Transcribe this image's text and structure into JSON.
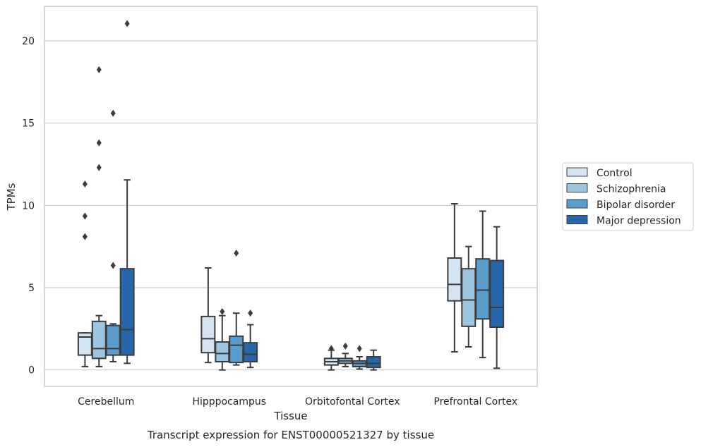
{
  "chart_data": {
    "type": "box",
    "title": "",
    "caption": "Transcript expression for ENST00000521327 by tissue",
    "xlabel": "Tissue",
    "ylabel": "TPMs",
    "ylim": [
      -1,
      22.1
    ],
    "yticks": [
      0,
      5,
      10,
      15,
      20
    ],
    "grid": "horizontal",
    "legend_placement": "right",
    "categories": [
      "Cerebellum",
      "Hipppocampus",
      "Orbitofontal Cortex",
      "Prefrontal Cortex"
    ],
    "series": [
      {
        "name": "Control",
        "color": "#d5e4f1",
        "boxes": [
          {
            "whisker_low": 0.2,
            "q1": 0.9,
            "median": 2.0,
            "q3": 2.25,
            "whisker_high": 2.25,
            "outliers": [
              8.1,
              9.35,
              11.3
            ]
          },
          {
            "whisker_low": 0.45,
            "q1": 1.05,
            "median": 1.9,
            "q3": 3.25,
            "whisker_high": 6.2,
            "outliers": []
          },
          {
            "whisker_low": 0.0,
            "q1": 0.3,
            "median": 0.5,
            "q3": 0.7,
            "whisker_high": 1.2,
            "outliers": [
              1.3
            ]
          },
          {
            "whisker_low": 1.1,
            "q1": 4.2,
            "median": 5.2,
            "q3": 6.8,
            "whisker_high": 10.1,
            "outliers": []
          }
        ]
      },
      {
        "name": "Schizophrenia",
        "color": "#9dc5df",
        "boxes": [
          {
            "whisker_low": 0.2,
            "q1": 0.7,
            "median": 1.3,
            "q3": 2.95,
            "whisker_high": 3.3,
            "outliers": [
              12.3,
              13.8,
              18.25
            ]
          },
          {
            "whisker_low": 0.0,
            "q1": 0.5,
            "median": 1.0,
            "q3": 1.7,
            "whisker_high": 3.3,
            "outliers": [
              3.55
            ]
          },
          {
            "whisker_low": 0.2,
            "q1": 0.4,
            "median": 0.55,
            "q3": 0.7,
            "whisker_high": 1.0,
            "outliers": [
              1.45
            ]
          },
          {
            "whisker_low": 1.4,
            "q1": 2.65,
            "median": 4.25,
            "q3": 6.15,
            "whisker_high": 7.5,
            "outliers": []
          }
        ]
      },
      {
        "name": "Bipolar disorder",
        "color": "#5a9ccc",
        "boxes": [
          {
            "whisker_low": 0.5,
            "q1": 0.9,
            "median": 1.3,
            "q3": 2.7,
            "whisker_high": 2.8,
            "outliers": [
              6.35,
              15.6
            ]
          },
          {
            "whisker_low": 0.3,
            "q1": 0.45,
            "median": 1.5,
            "q3": 2.05,
            "whisker_high": 3.45,
            "outliers": [
              7.1
            ]
          },
          {
            "whisker_low": 0.05,
            "q1": 0.2,
            "median": 0.4,
            "q3": 0.55,
            "whisker_high": 0.8,
            "outliers": [
              1.3
            ]
          },
          {
            "whisker_low": 0.75,
            "q1": 3.1,
            "median": 4.85,
            "q3": 6.75,
            "whisker_high": 9.65,
            "outliers": []
          }
        ]
      },
      {
        "name": "Major depression",
        "color": "#2767a9",
        "boxes": [
          {
            "whisker_low": 0.4,
            "q1": 0.9,
            "median": 2.45,
            "q3": 6.15,
            "whisker_high": 11.55,
            "outliers": [
              21.05
            ]
          },
          {
            "whisker_low": 0.15,
            "q1": 0.5,
            "median": 0.95,
            "q3": 1.65,
            "whisker_high": 2.75,
            "outliers": [
              3.45
            ]
          },
          {
            "whisker_low": 0.0,
            "q1": 0.15,
            "median": 0.4,
            "q3": 0.8,
            "whisker_high": 1.2,
            "outliers": []
          },
          {
            "whisker_low": 0.1,
            "q1": 2.6,
            "median": 3.8,
            "q3": 6.65,
            "whisker_high": 8.7,
            "outliers": []
          }
        ]
      }
    ]
  }
}
